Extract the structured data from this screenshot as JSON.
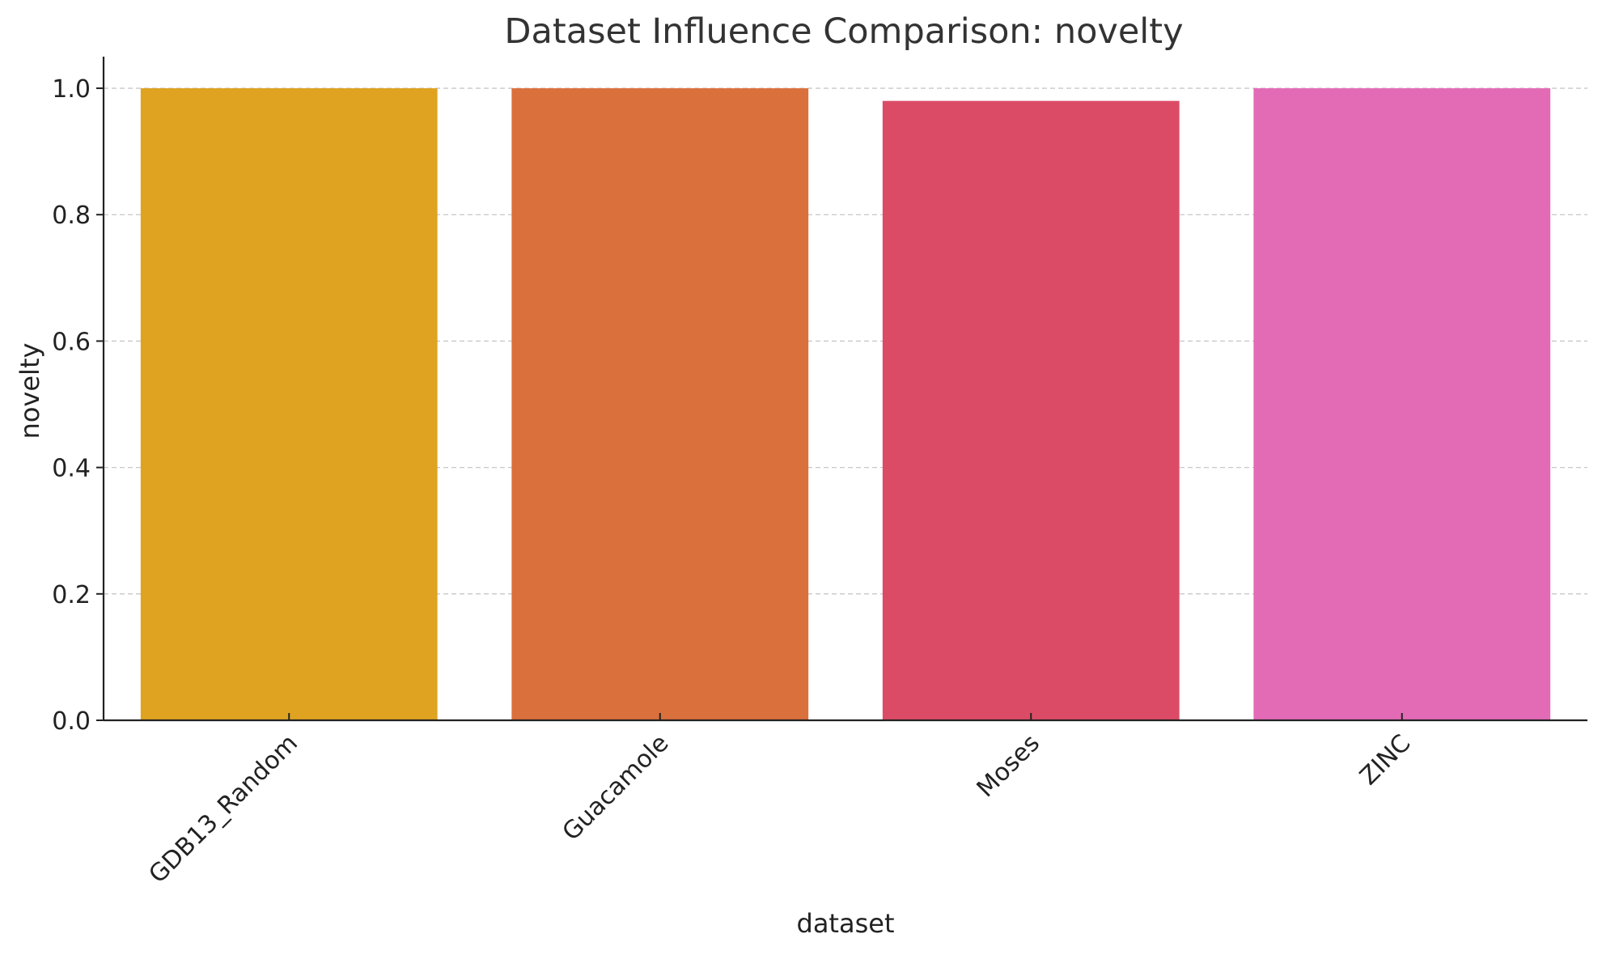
{
  "chart_data": {
    "type": "bar",
    "title": "Dataset Influence Comparison: novelty",
    "xlabel": "dataset",
    "ylabel": "novelty",
    "categories": [
      "GDB13_Random",
      "Guacamole",
      "Moses",
      "ZINC"
    ],
    "values": [
      1.0,
      1.0,
      0.98,
      1.0
    ],
    "colors": [
      "#DFA321",
      "#DA703C",
      "#DC4B66",
      "#E36BB6"
    ],
    "ylim": [
      0,
      1.05
    ],
    "yticks": [
      "0.0",
      "0.2",
      "0.4",
      "0.6",
      "0.8",
      "1.0"
    ],
    "grid": "y dashed",
    "legend": "none"
  }
}
